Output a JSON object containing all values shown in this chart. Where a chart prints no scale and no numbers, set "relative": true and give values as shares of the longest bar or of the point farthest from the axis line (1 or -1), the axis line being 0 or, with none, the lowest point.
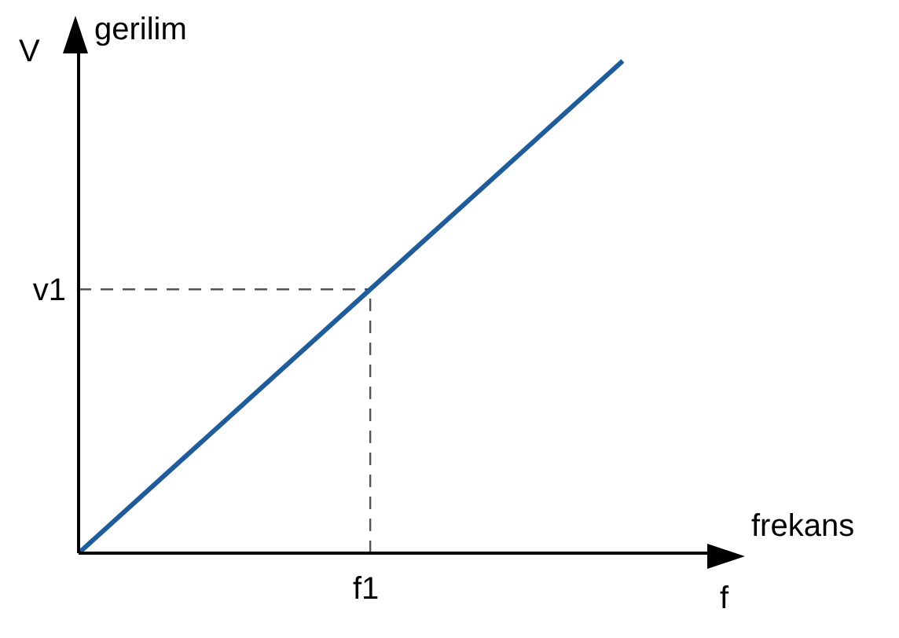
{
  "chart_data": {
    "type": "line",
    "relative": true,
    "xlabel": "frekans",
    "ylabel": "gerilim",
    "annotations": [
      "V",
      "f",
      "f1"
    ],
    "categories": [
      null,
      null
    ],
    "series": [
      {
        "color": "#1f5c99",
        "values": [
          0,
          1
        ]
      }
    ],
    "ref_lines": [
      {
        "axis": "y",
        "value": 0.536,
        "label": "v1",
        "line_style": "dashed",
        "color": "#555555"
      }
    ],
    "marker": "none",
    "line_style": "solid",
    "grid": false,
    "legend": false
  }
}
